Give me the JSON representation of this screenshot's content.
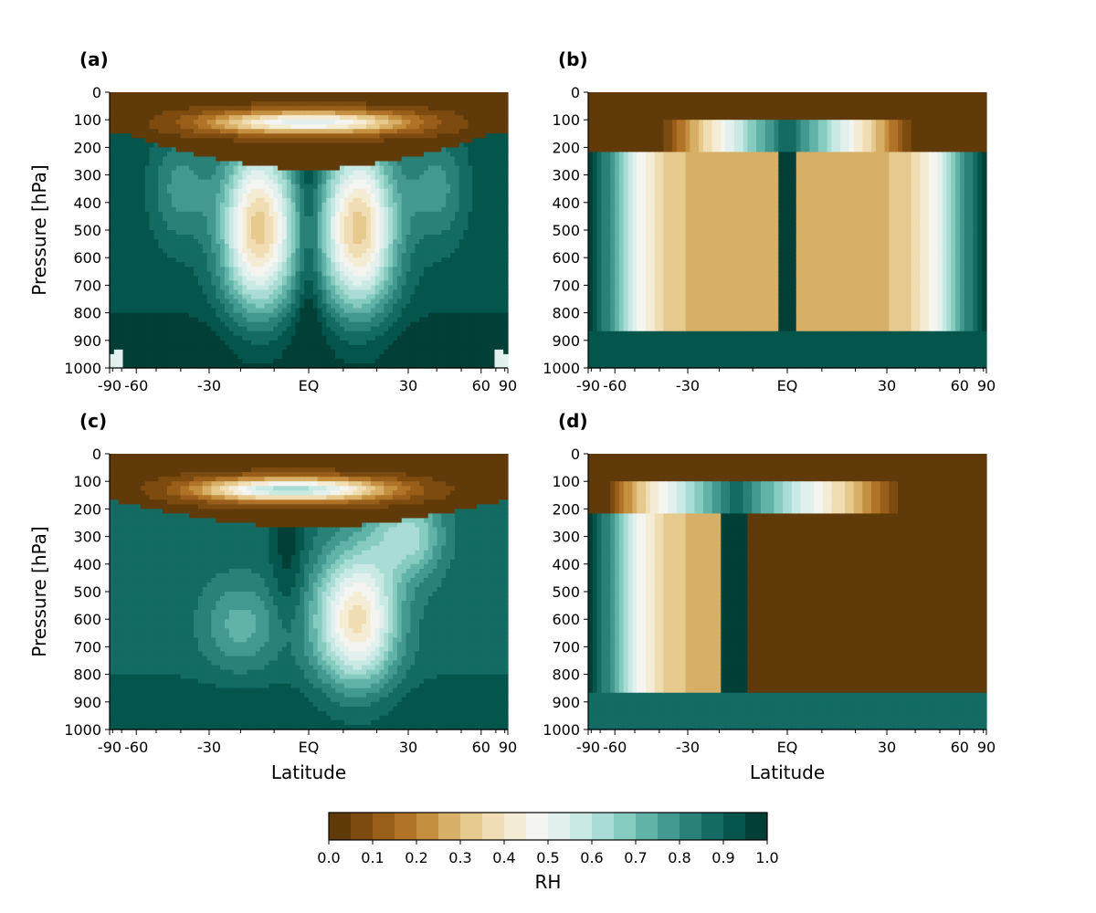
{
  "chart_data": {
    "type": "heatmap",
    "description_panels": [
      {
        "label": "(a)"
      },
      {
        "label": "(b)"
      },
      {
        "label": "(c)"
      },
      {
        "label": "(d)"
      }
    ],
    "panels": [
      {
        "id": "a",
        "label": "(a)",
        "xlabel": "",
        "ylabel": "Pressure [hPa]",
        "xlim": [
          -90,
          90
        ],
        "ylim": [
          1000,
          0
        ],
        "x_ticks": [
          "-90",
          "-60",
          "-30",
          "EQ",
          "30",
          "60",
          "90"
        ],
        "y_ticks": [
          "0",
          "100",
          "200",
          "300",
          "400",
          "500",
          "600",
          "700",
          "800",
          "900",
          "1000"
        ],
        "pattern": "symmetric-dry-subtropics"
      },
      {
        "id": "b",
        "label": "(b)",
        "xlabel": "",
        "ylabel": "",
        "xlim": [
          -90,
          90
        ],
        "ylim": [
          1000,
          0
        ],
        "x_ticks": [
          "-90",
          "-60",
          "-30",
          "EQ",
          "30",
          "60",
          "90"
        ],
        "y_ticks": [
          "0",
          "100",
          "200",
          "300",
          "400",
          "500",
          "600",
          "700",
          "800",
          "900",
          "1000"
        ],
        "pattern": "idealized-symmetric"
      },
      {
        "id": "c",
        "label": "(c)",
        "xlabel": "Latitude",
        "ylabel": "Pressure [hPa]",
        "xlim": [
          -90,
          90
        ],
        "ylim": [
          1000,
          0
        ],
        "x_ticks": [
          "-90",
          "-60",
          "-30",
          "EQ",
          "30",
          "60",
          "90"
        ],
        "y_ticks": [
          "0",
          "100",
          "200",
          "300",
          "400",
          "500",
          "600",
          "700",
          "800",
          "900",
          "1000"
        ],
        "pattern": "asymmetric-north-dry"
      },
      {
        "id": "d",
        "label": "(d)",
        "xlabel": "Latitude",
        "ylabel": "",
        "xlim": [
          -90,
          90
        ],
        "ylim": [
          1000,
          0
        ],
        "x_ticks": [
          "-90",
          "-60",
          "-30",
          "EQ",
          "30",
          "60",
          "90"
        ],
        "y_ticks": [
          "0",
          "100",
          "200",
          "300",
          "400",
          "500",
          "600",
          "700",
          "800",
          "900",
          "1000"
        ],
        "pattern": "idealized-asymmetric"
      }
    ],
    "colorbar": {
      "label": "RH",
      "range": [
        0.0,
        1.0
      ],
      "ticks": [
        "0.0",
        "0.1",
        "0.2",
        "0.3",
        "0.4",
        "0.5",
        "0.6",
        "0.7",
        "0.8",
        "0.9",
        "1.0"
      ],
      "levels": 20,
      "colors": [
        "#613a0a",
        "#7d4b0f",
        "#995e19",
        "#b07328",
        "#c4903f",
        "#d7af66",
        "#e6c98d",
        "#f1ddb3",
        "#f5ecd6",
        "#f4f4f1",
        "#e2f0ee",
        "#c9e9e4",
        "#a9dcd4",
        "#86cbc0",
        "#61b3a8",
        "#43998f",
        "#2a8177",
        "#136b62",
        "#04564c",
        "#023f36"
      ]
    }
  }
}
